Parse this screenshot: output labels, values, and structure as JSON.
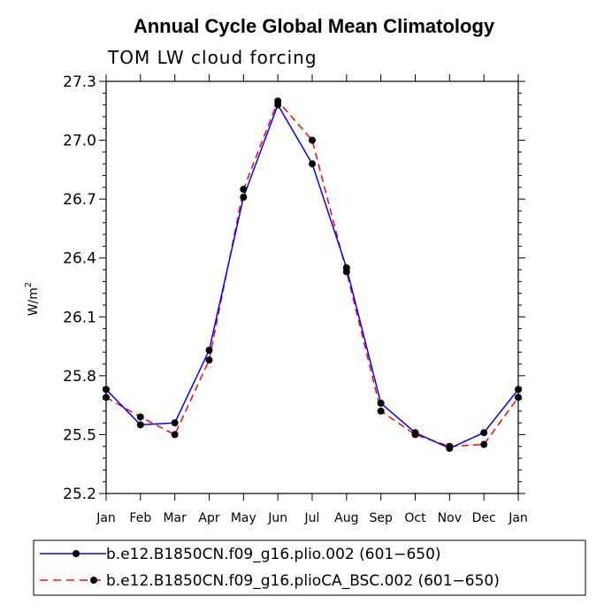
{
  "chart_data": {
    "type": "line",
    "title": "Annual Cycle Global Mean Climatology",
    "subtitle": "TOM LW cloud forcing",
    "xlabel": "",
    "ylabel": "W/m",
    "ylabel_superscript": "2",
    "categories": [
      "Jan",
      "Feb",
      "Mar",
      "Apr",
      "May",
      "Jun",
      "Jul",
      "Aug",
      "Sep",
      "Oct",
      "Nov",
      "Dec",
      "Jan"
    ],
    "ylim": [
      25.2,
      27.3
    ],
    "yticks": [
      "25.2",
      "25.5",
      "25.8",
      "26.1",
      "26.4",
      "26.7",
      "27.0",
      "27.3"
    ],
    "series": [
      {
        "name": "b.e12.B1850CN.f09_g16.plio.002 (601−650)",
        "color": "#0000ff",
        "dash": "solid",
        "values": [
          25.73,
          25.55,
          25.56,
          25.93,
          26.71,
          27.18,
          26.88,
          26.35,
          25.66,
          25.51,
          25.43,
          25.51,
          25.73
        ]
      },
      {
        "name": "b.e12.B1850CN.f09_g16.plioCA_BSC.002 (601−650)",
        "color": "#ff0000",
        "dash": "dashed",
        "values": [
          25.69,
          25.59,
          25.5,
          25.88,
          26.75,
          27.2,
          27.0,
          26.33,
          25.62,
          25.5,
          25.44,
          25.45,
          25.69
        ]
      }
    ],
    "legend_position": "bottom"
  }
}
